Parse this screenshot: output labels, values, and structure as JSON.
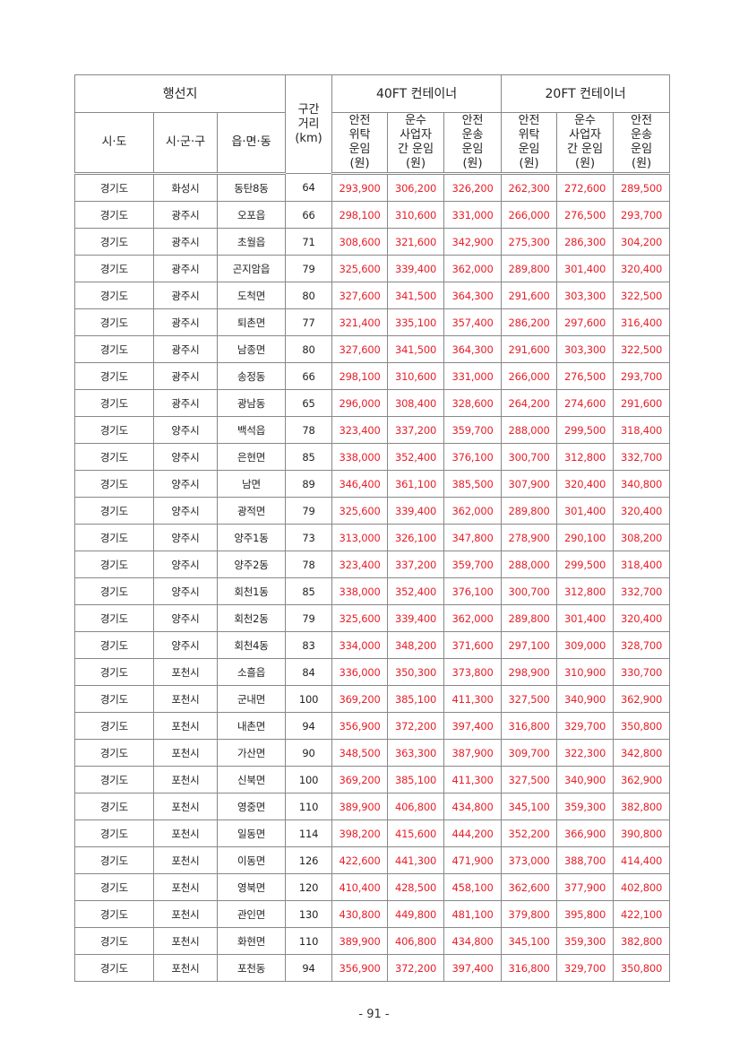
{
  "table": {
    "header": {
      "region": "행선지",
      "distance": "구간\n거리\n(km)",
      "ft40": "40FT 컨테이너",
      "ft20": "20FT 컨테이너",
      "sido": "시·도",
      "sigungu": "시·군·구",
      "eupmyeondong": "읍·면·동",
      "rate_consign": "안전\n위탁\n운임\n(원)",
      "rate_carrier": "운수\n사업자\n간 운임\n(원)",
      "rate_transport": "안전\n운송\n운임\n(원)"
    },
    "rows": [
      [
        "경기도",
        "화성시",
        "동탄8동",
        "64",
        "293,900",
        "306,200",
        "326,200",
        "262,300",
        "272,600",
        "289,500"
      ],
      [
        "경기도",
        "광주시",
        "오포읍",
        "66",
        "298,100",
        "310,600",
        "331,000",
        "266,000",
        "276,500",
        "293,700"
      ],
      [
        "경기도",
        "광주시",
        "초월읍",
        "71",
        "308,600",
        "321,600",
        "342,900",
        "275,300",
        "286,300",
        "304,200"
      ],
      [
        "경기도",
        "광주시",
        "곤지암읍",
        "79",
        "325,600",
        "339,400",
        "362,000",
        "289,800",
        "301,400",
        "320,400"
      ],
      [
        "경기도",
        "광주시",
        "도척면",
        "80",
        "327,600",
        "341,500",
        "364,300",
        "291,600",
        "303,300",
        "322,500"
      ],
      [
        "경기도",
        "광주시",
        "퇴촌면",
        "77",
        "321,400",
        "335,100",
        "357,400",
        "286,200",
        "297,600",
        "316,400"
      ],
      [
        "경기도",
        "광주시",
        "남종면",
        "80",
        "327,600",
        "341,500",
        "364,300",
        "291,600",
        "303,300",
        "322,500"
      ],
      [
        "경기도",
        "광주시",
        "송정동",
        "66",
        "298,100",
        "310,600",
        "331,000",
        "266,000",
        "276,500",
        "293,700"
      ],
      [
        "경기도",
        "광주시",
        "광남동",
        "65",
        "296,000",
        "308,400",
        "328,600",
        "264,200",
        "274,600",
        "291,600"
      ],
      [
        "경기도",
        "양주시",
        "백석읍",
        "78",
        "323,400",
        "337,200",
        "359,700",
        "288,000",
        "299,500",
        "318,400"
      ],
      [
        "경기도",
        "양주시",
        "은현면",
        "85",
        "338,000",
        "352,400",
        "376,100",
        "300,700",
        "312,800",
        "332,700"
      ],
      [
        "경기도",
        "양주시",
        "남면",
        "89",
        "346,400",
        "361,100",
        "385,500",
        "307,900",
        "320,400",
        "340,800"
      ],
      [
        "경기도",
        "양주시",
        "광적면",
        "79",
        "325,600",
        "339,400",
        "362,000",
        "289,800",
        "301,400",
        "320,400"
      ],
      [
        "경기도",
        "양주시",
        "양주1동",
        "73",
        "313,000",
        "326,100",
        "347,800",
        "278,900",
        "290,100",
        "308,200"
      ],
      [
        "경기도",
        "양주시",
        "양주2동",
        "78",
        "323,400",
        "337,200",
        "359,700",
        "288,000",
        "299,500",
        "318,400"
      ],
      [
        "경기도",
        "양주시",
        "회천1동",
        "85",
        "338,000",
        "352,400",
        "376,100",
        "300,700",
        "312,800",
        "332,700"
      ],
      [
        "경기도",
        "양주시",
        "회천2동",
        "79",
        "325,600",
        "339,400",
        "362,000",
        "289,800",
        "301,400",
        "320,400"
      ],
      [
        "경기도",
        "양주시",
        "회천4동",
        "83",
        "334,000",
        "348,200",
        "371,600",
        "297,100",
        "309,000",
        "328,700"
      ],
      [
        "경기도",
        "포천시",
        "소흘읍",
        "84",
        "336,000",
        "350,300",
        "373,800",
        "298,900",
        "310,900",
        "330,700"
      ],
      [
        "경기도",
        "포천시",
        "군내면",
        "100",
        "369,200",
        "385,100",
        "411,300",
        "327,500",
        "340,900",
        "362,900"
      ],
      [
        "경기도",
        "포천시",
        "내촌면",
        "94",
        "356,900",
        "372,200",
        "397,400",
        "316,800",
        "329,700",
        "350,800"
      ],
      [
        "경기도",
        "포천시",
        "가산면",
        "90",
        "348,500",
        "363,300",
        "387,900",
        "309,700",
        "322,300",
        "342,800"
      ],
      [
        "경기도",
        "포천시",
        "신북면",
        "100",
        "369,200",
        "385,100",
        "411,300",
        "327,500",
        "340,900",
        "362,900"
      ],
      [
        "경기도",
        "포천시",
        "영중면",
        "110",
        "389,900",
        "406,800",
        "434,800",
        "345,100",
        "359,300",
        "382,800"
      ],
      [
        "경기도",
        "포천시",
        "일동면",
        "114",
        "398,200",
        "415,600",
        "444,200",
        "352,200",
        "366,900",
        "390,800"
      ],
      [
        "경기도",
        "포천시",
        "이동면",
        "126",
        "422,600",
        "441,300",
        "471,900",
        "373,000",
        "388,700",
        "414,400"
      ],
      [
        "경기도",
        "포천시",
        "영북면",
        "120",
        "410,400",
        "428,500",
        "458,100",
        "362,600",
        "377,900",
        "402,800"
      ],
      [
        "경기도",
        "포천시",
        "관인면",
        "130",
        "430,800",
        "449,800",
        "481,100",
        "379,800",
        "395,800",
        "422,100"
      ],
      [
        "경기도",
        "포천시",
        "화현면",
        "110",
        "389,900",
        "406,800",
        "434,800",
        "345,100",
        "359,300",
        "382,800"
      ],
      [
        "경기도",
        "포천시",
        "포천동",
        "94",
        "356,900",
        "372,200",
        "397,400",
        "316,800",
        "329,700",
        "350,800"
      ]
    ]
  },
  "colors": {
    "rate_text": "#e8202a"
  },
  "page_number": "- 91 -"
}
